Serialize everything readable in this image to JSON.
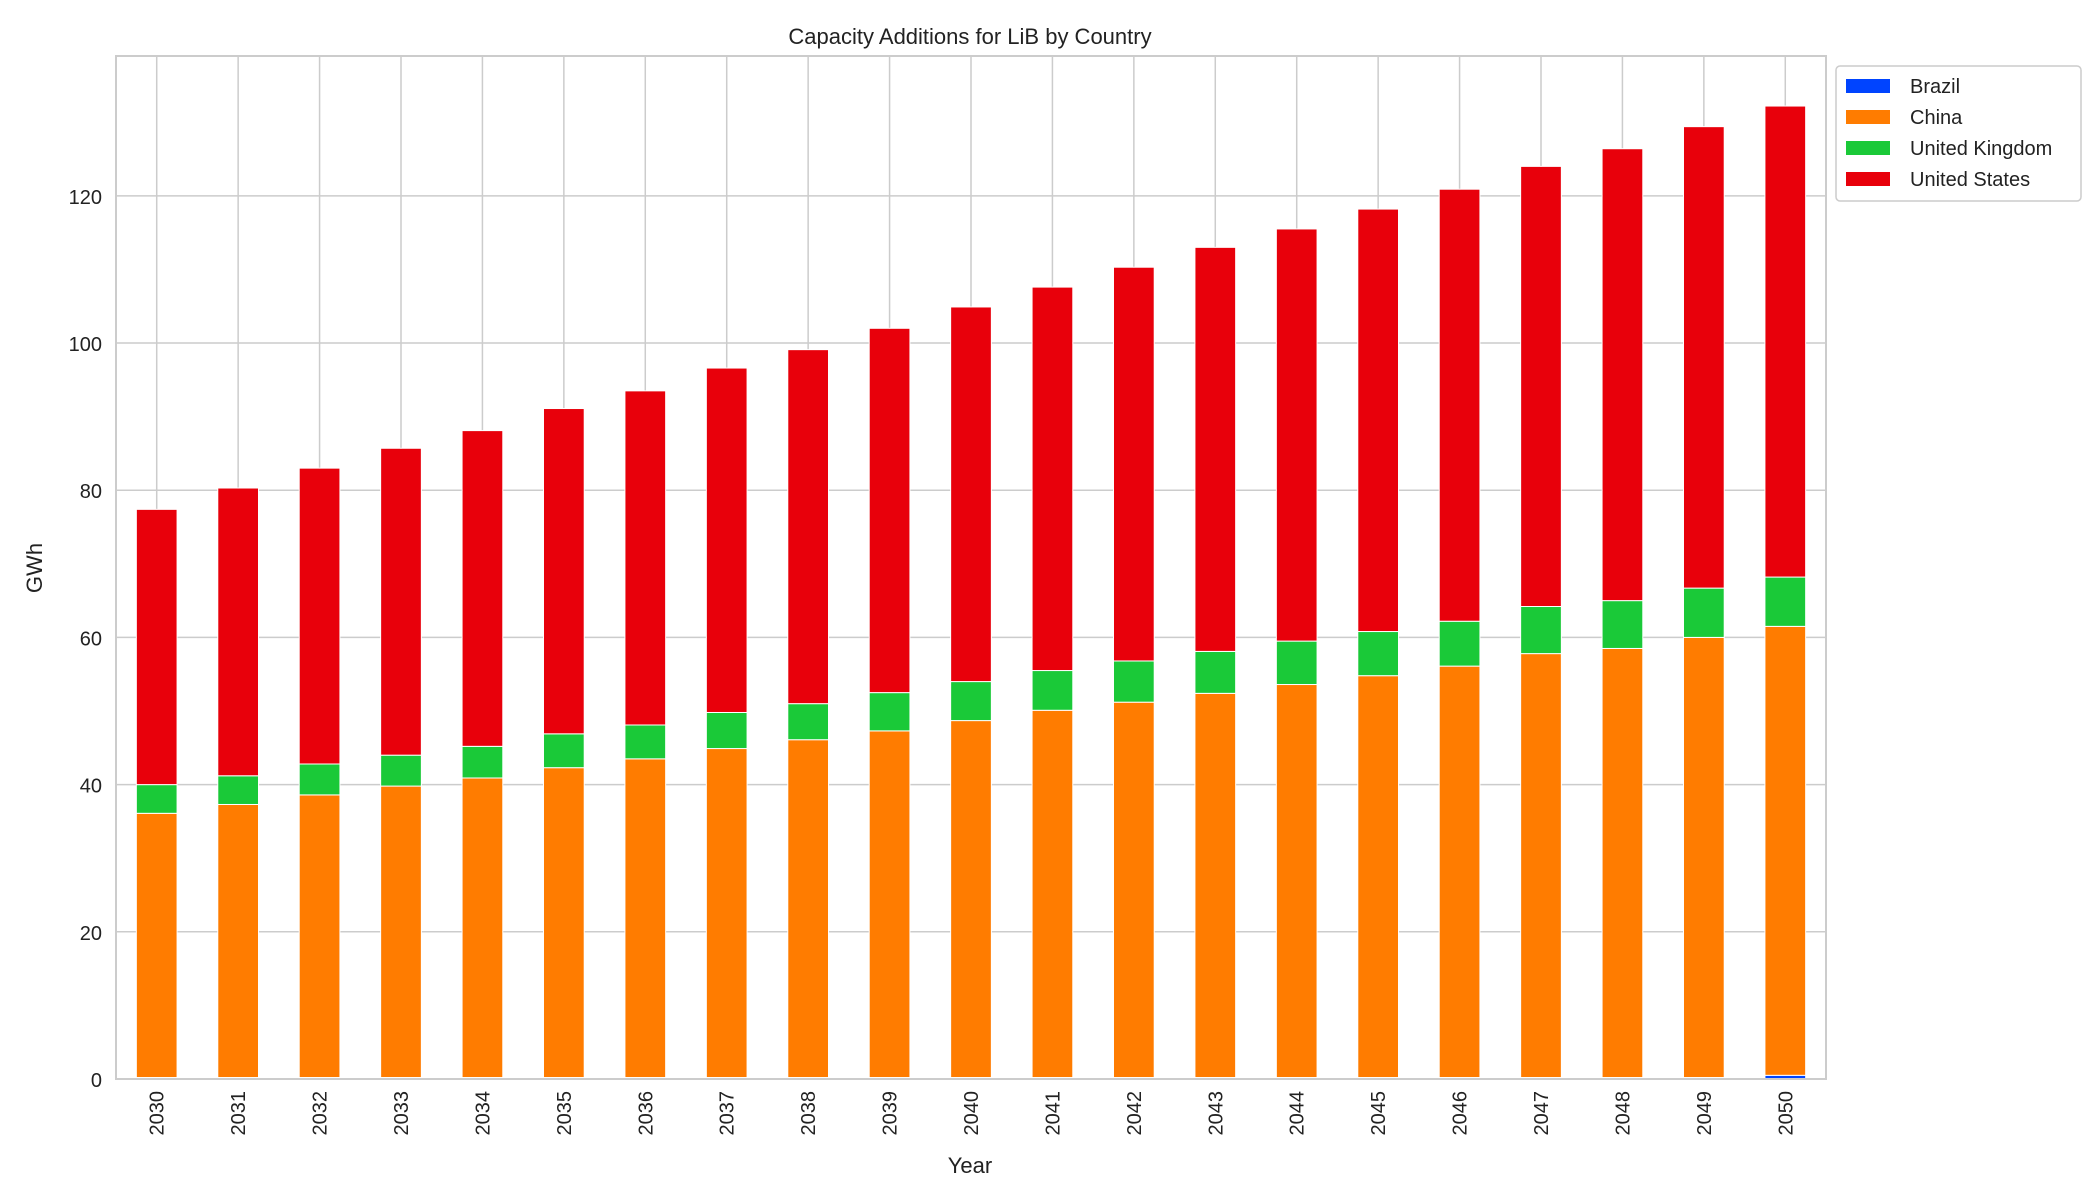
{
  "chart_data": {
    "type": "bar",
    "stacked": true,
    "title": "Capacity Additions for LiB by Country",
    "xlabel": "Year",
    "ylabel": "GWh",
    "categories": [
      "2030",
      "2031",
      "2032",
      "2033",
      "2034",
      "2035",
      "2036",
      "2037",
      "2038",
      "2039",
      "2040",
      "2041",
      "2042",
      "2043",
      "2044",
      "2045",
      "2046",
      "2047",
      "2048",
      "2049",
      "2050"
    ],
    "ylim": [
      0,
      139
    ],
    "yticks": [
      0,
      20,
      40,
      60,
      80,
      100,
      120
    ],
    "grid": true,
    "legend_position": "outside top-right",
    "series": [
      {
        "name": "Brazil",
        "color": "#0044ff",
        "values": [
          0.2,
          0.2,
          0.2,
          0.2,
          0.2,
          0.2,
          0.2,
          0.2,
          0.2,
          0.2,
          0.2,
          0.2,
          0.2,
          0.2,
          0.2,
          0.2,
          0.2,
          0.2,
          0.2,
          0.2,
          0.5
        ]
      },
      {
        "name": "China",
        "color": "#ff7c00",
        "values": [
          35.9,
          37.1,
          38.4,
          39.6,
          40.7,
          42.1,
          43.3,
          44.7,
          45.9,
          47.1,
          48.5,
          49.9,
          51.0,
          52.2,
          53.4,
          54.6,
          55.9,
          57.6,
          58.3,
          59.8,
          61.0
        ]
      },
      {
        "name": "United Kingdom",
        "color": "#1ac938",
        "values": [
          3.9,
          3.9,
          4.2,
          4.2,
          4.3,
          4.6,
          4.6,
          4.9,
          4.9,
          5.2,
          5.3,
          5.4,
          5.6,
          5.7,
          5.9,
          6.0,
          6.1,
          6.4,
          6.5,
          6.7,
          6.7
        ]
      },
      {
        "name": "United States",
        "color": "#e8000b",
        "values": [
          37.4,
          39.1,
          40.2,
          41.7,
          42.9,
          44.2,
          45.4,
          46.8,
          48.1,
          49.5,
          50.9,
          52.1,
          53.5,
          54.9,
          56.0,
          57.4,
          58.7,
          59.8,
          61.4,
          62.7,
          64.0
        ]
      }
    ]
  }
}
